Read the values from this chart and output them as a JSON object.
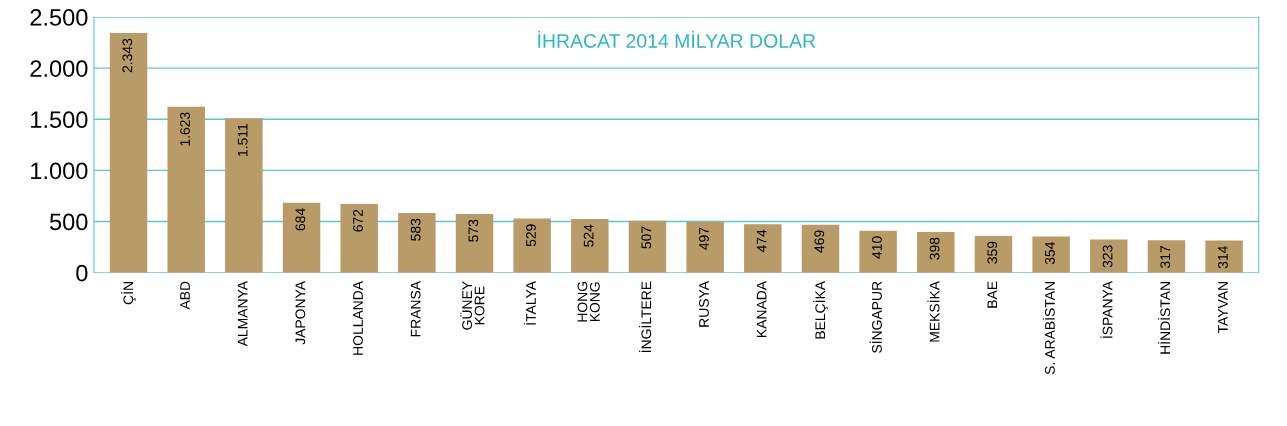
{
  "chart_data": {
    "type": "bar",
    "title": "İHRACAT 2014 MİLYAR DOLAR",
    "categories": [
      "ÇİN",
      "ABD",
      "ALMANYA",
      "JAPONYA",
      "HOLLANDA",
      "FRANSA",
      "GÜNEY\nKORE",
      "İTALYA",
      "HONG\nKONG",
      "İNGİLTERE",
      "RUSYA",
      "KANADA",
      "BELÇİKA",
      "SİNGAPUR",
      "MEKSİKA",
      "BAE",
      "S. ARABİSTAN",
      "İSPANYA",
      "HİNDİSTAN",
      "TAYVAN"
    ],
    "values": [
      2343,
      1623,
      1511,
      684,
      672,
      583,
      573,
      529,
      524,
      507,
      497,
      474,
      469,
      410,
      398,
      359,
      354,
      323,
      317,
      314
    ],
    "value_labels": [
      "2.343",
      "1.623",
      "1.511",
      "684",
      "672",
      "583",
      "573",
      "529",
      "524",
      "507",
      "497",
      "474",
      "469",
      "410",
      "398",
      "359",
      "354",
      "323",
      "317",
      "314"
    ],
    "color": "#b99b68",
    "ylim": [
      0,
      2500
    ],
    "yticks": [
      0,
      500,
      {
        "value": 1000,
        "label": "1.000"
      },
      {
        "value": 1500,
        "label": "1.500"
      },
      {
        "value": 2000,
        "label": "2.000"
      },
      {
        "value": 2500,
        "label": "2.500"
      }
    ],
    "grid": "y"
  }
}
